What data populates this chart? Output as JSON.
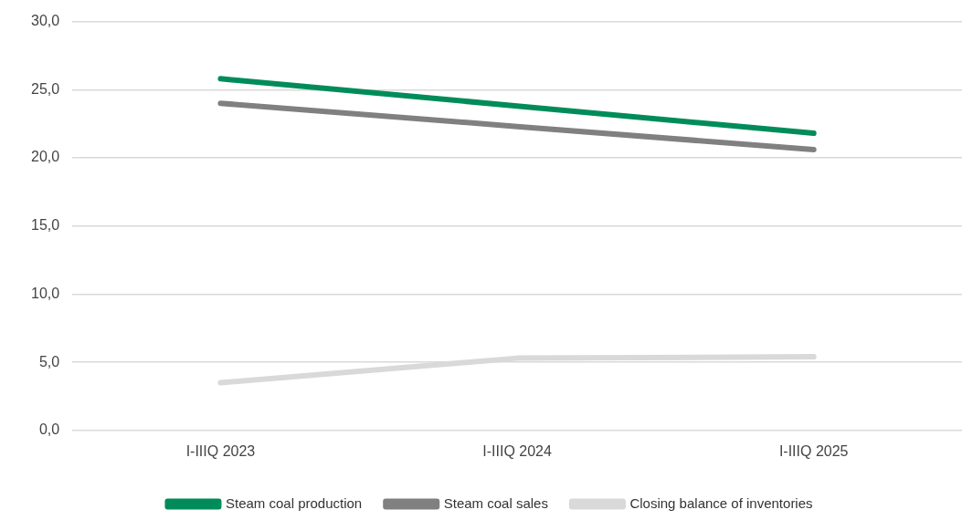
{
  "chart_data": {
    "type": "line",
    "categories": [
      "I-IIIQ 2023",
      "I-IIIQ 2024",
      "I-IIIQ 2025"
    ],
    "series": [
      {
        "name": "Steam coal production",
        "color": "#008c5a",
        "values": [
          25.8,
          23.8,
          21.8
        ]
      },
      {
        "name": "Steam coal sales",
        "color": "#808080",
        "values": [
          24.0,
          22.3,
          20.6
        ]
      },
      {
        "name": "Closing balance of inventories",
        "color": "#d9d9d9",
        "values": [
          3.5,
          5.3,
          5.4
        ]
      }
    ],
    "ylim": [
      0,
      30
    ],
    "yticks": [
      {
        "value": 0,
        "label": "0,0"
      },
      {
        "value": 5,
        "label": "5,0"
      },
      {
        "value": 10,
        "label": "10,0"
      },
      {
        "value": 15,
        "label": "15,0"
      },
      {
        "value": 20,
        "label": "20,0"
      },
      {
        "value": 25,
        "label": "25,0"
      },
      {
        "value": 30,
        "label": "30,0"
      }
    ],
    "grid": "y",
    "legend": "bottom",
    "marker": "none",
    "line_style": "solid"
  }
}
